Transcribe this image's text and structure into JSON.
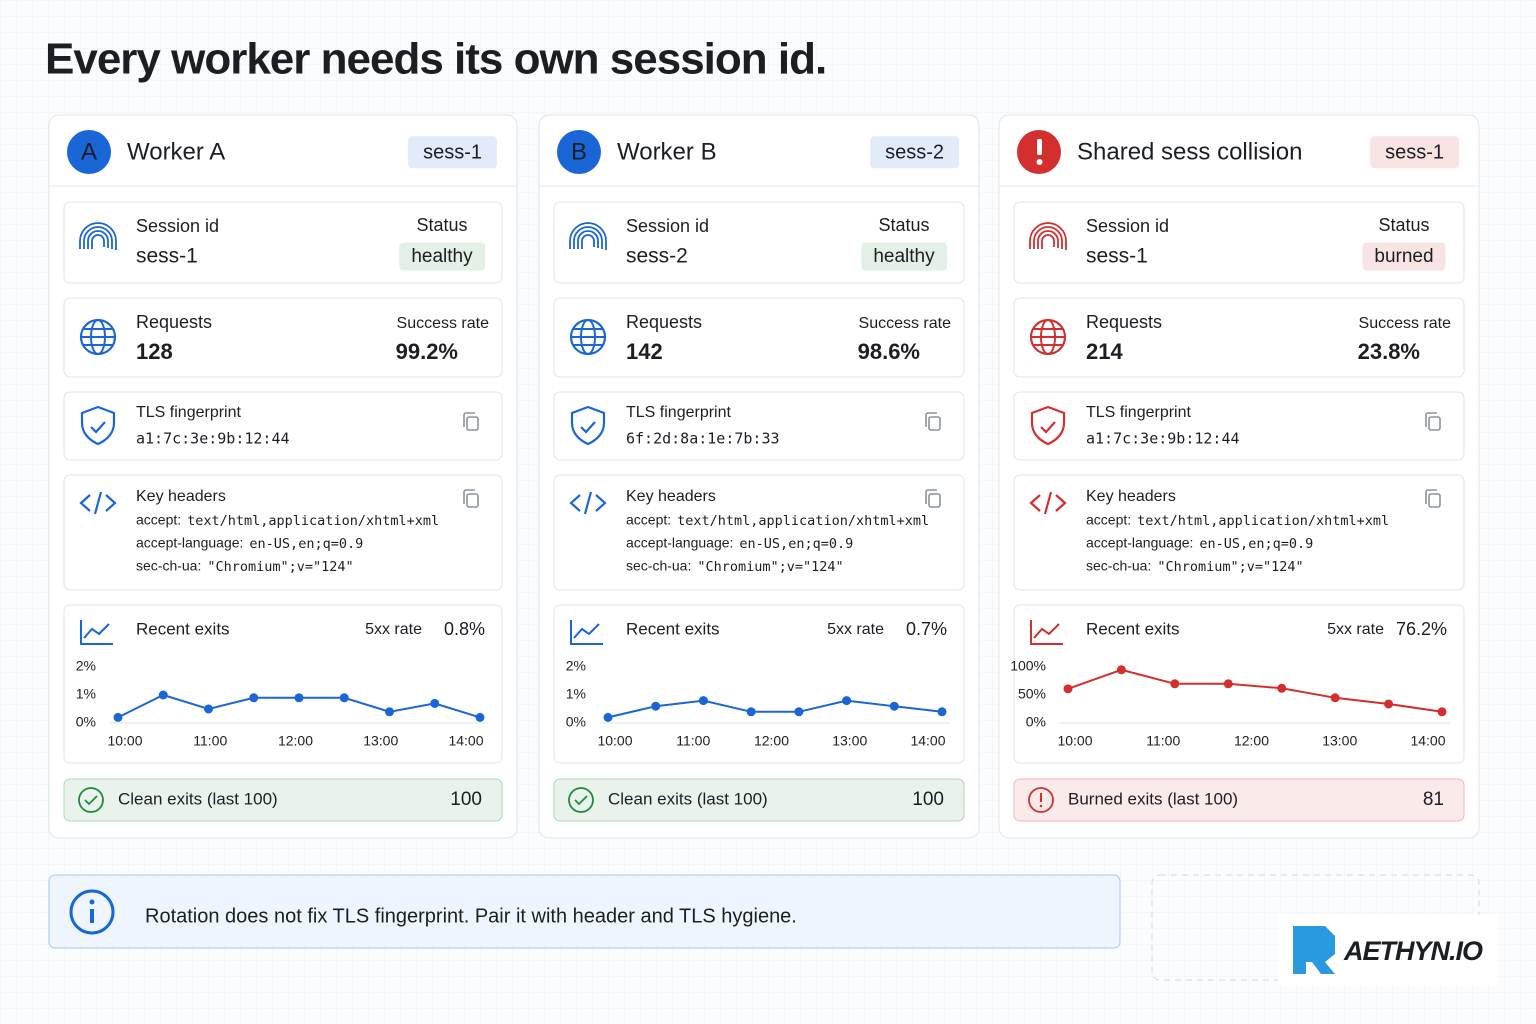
{
  "title": "Every worker needs its own session id.",
  "cards": [
    {
      "avatar": "A",
      "name": "Worker A",
      "badge": "sess-1",
      "accent": "#1a66d6",
      "status_color": "#1f8a3e",
      "session_label": "Session id",
      "session": "sess-1",
      "status_label": "Status",
      "status": "healthy",
      "requests_label": "Requests",
      "requests": "128",
      "success_label": "Success rate",
      "success": "99.2%",
      "tls_label": "TLS fingerprint",
      "tls": "a1:7c:3e:9b:12:44",
      "headers_label": "Key headers",
      "headers": [
        {
          "key": "accept:",
          "value": "text/html,application/xhtml+xml"
        },
        {
          "key": "accept-language:",
          "value": "en-US,en;q=0.9"
        },
        {
          "key": "sec-ch-ua:",
          "value": "\"Chromium\";v=\"124\""
        }
      ],
      "exits_label": "Recent exits",
      "rate_label": "5xx rate",
      "rate": "0.8%",
      "chart": {
        "type": "line",
        "values": [
          0.2,
          1.0,
          0.5,
          0.9,
          0.9,
          0.9,
          0.4,
          0.7,
          0.2
        ],
        "ylim": [
          0,
          2
        ],
        "yticks": [
          {
            "value": 2,
            "label": "2%"
          },
          {
            "value": 1,
            "label": "1%"
          },
          {
            "value": 0,
            "label": "0%"
          }
        ],
        "xticks": [
          "10:00",
          "11:00",
          "12:00",
          "13:00",
          "14:00"
        ]
      },
      "footer_label": "Clean exits (last 100)",
      "footer_value": "100"
    },
    {
      "avatar": "B",
      "name": "Worker B",
      "badge": "sess-2",
      "accent": "#1a66d6",
      "status_color": "#1f8a3e",
      "session_label": "Session id",
      "session": "sess-2",
      "status_label": "Status",
      "status": "healthy",
      "requests_label": "Requests",
      "requests": "142",
      "success_label": "Success rate",
      "success": "98.6%",
      "tls_label": "TLS fingerprint",
      "tls": "6f:2d:8a:1e:7b:33",
      "headers_label": "Key headers",
      "headers": [
        {
          "key": "accept:",
          "value": "text/html,application/xhtml+xml"
        },
        {
          "key": "accept-language:",
          "value": "en-US,en;q=0.9"
        },
        {
          "key": "sec-ch-ua:",
          "value": "\"Chromium\";v=\"124\""
        }
      ],
      "exits_label": "Recent exits",
      "rate_label": "5xx rate",
      "rate": "0.7%",
      "chart": {
        "type": "line",
        "values": [
          0.2,
          0.6,
          0.8,
          0.4,
          0.4,
          0.8,
          0.6,
          0.4
        ],
        "ylim": [
          0,
          2
        ],
        "yticks": [
          {
            "value": 2,
            "label": "2%"
          },
          {
            "value": 1,
            "label": "1%"
          },
          {
            "value": 0,
            "label": "0%"
          }
        ],
        "xticks": [
          "10:00",
          "11:00",
          "12:00",
          "13:00",
          "14:00"
        ]
      },
      "footer_label": "Clean exits (last 100)",
      "footer_value": "100"
    },
    {
      "name": "Shared sess collision",
      "badge": "sess-1",
      "accent": "#d32f2f",
      "status_color": "#d32f2f",
      "session_label": "Session id",
      "session": "sess-1",
      "status_label": "Status",
      "status": "burned",
      "requests_label": "Requests",
      "requests": "214",
      "success_label": "Success rate",
      "success": "23.8%",
      "tls_label": "TLS fingerprint",
      "tls": "a1:7c:3e:9b:12:44",
      "headers_label": "Key headers",
      "headers": [
        {
          "key": "accept:",
          "value": "text/html,application/xhtml+xml"
        },
        {
          "key": "accept-language:",
          "value": "en-US,en;q=0.9"
        },
        {
          "key": "sec-ch-ua:",
          "value": "\"Chromium\";v=\"124\""
        }
      ],
      "exits_label": "Recent exits",
      "rate_label": "5xx rate",
      "rate": "76.2%",
      "chart": {
        "type": "line",
        "values": [
          61,
          95,
          70,
          70,
          62,
          45,
          34,
          20
        ],
        "ylim": [
          0,
          100
        ],
        "yticks": [
          {
            "value": 100,
            "label": "100%"
          },
          {
            "value": 50,
            "label": "50%"
          },
          {
            "value": 0,
            "label": "0%"
          }
        ],
        "xticks": [
          "10:00",
          "11:00",
          "12:00",
          "13:00",
          "14:00"
        ]
      },
      "footer_label": "Burned exits (last 100)",
      "footer_value": "81"
    }
  ],
  "note": "Rotation does not fix TLS fingerprint. Pair it with header and TLS hygiene.",
  "brand": "AETHYN.IO"
}
